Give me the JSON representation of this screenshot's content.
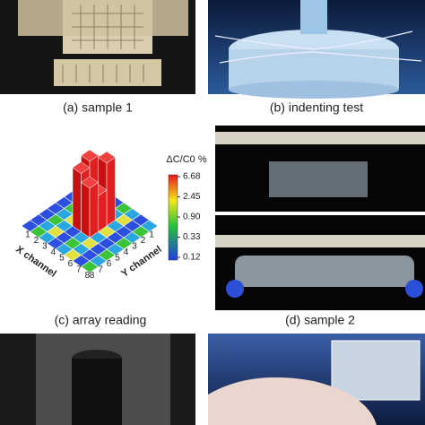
{
  "panels": [
    {
      "caption": "(a) sample 1"
    },
    {
      "caption": "(b) indenting test"
    },
    {
      "caption": "(c) array reading"
    },
    {
      "caption": "(d) sample 2"
    }
  ],
  "array_reading": {
    "colorbar_title": "ΔC/C0 %",
    "colorbar_ticks": [
      "6.68",
      "2.45",
      "0.90",
      "0.33",
      "0.12"
    ],
    "x_axis_label": "X channel",
    "y_axis_label": "Y channel",
    "x_ticks": [
      "1",
      "2",
      "3",
      "4",
      "5",
      "6",
      "7",
      "8"
    ],
    "y_ticks": [
      "1",
      "2",
      "3",
      "4",
      "5",
      "6",
      "7",
      "8"
    ]
  }
}
